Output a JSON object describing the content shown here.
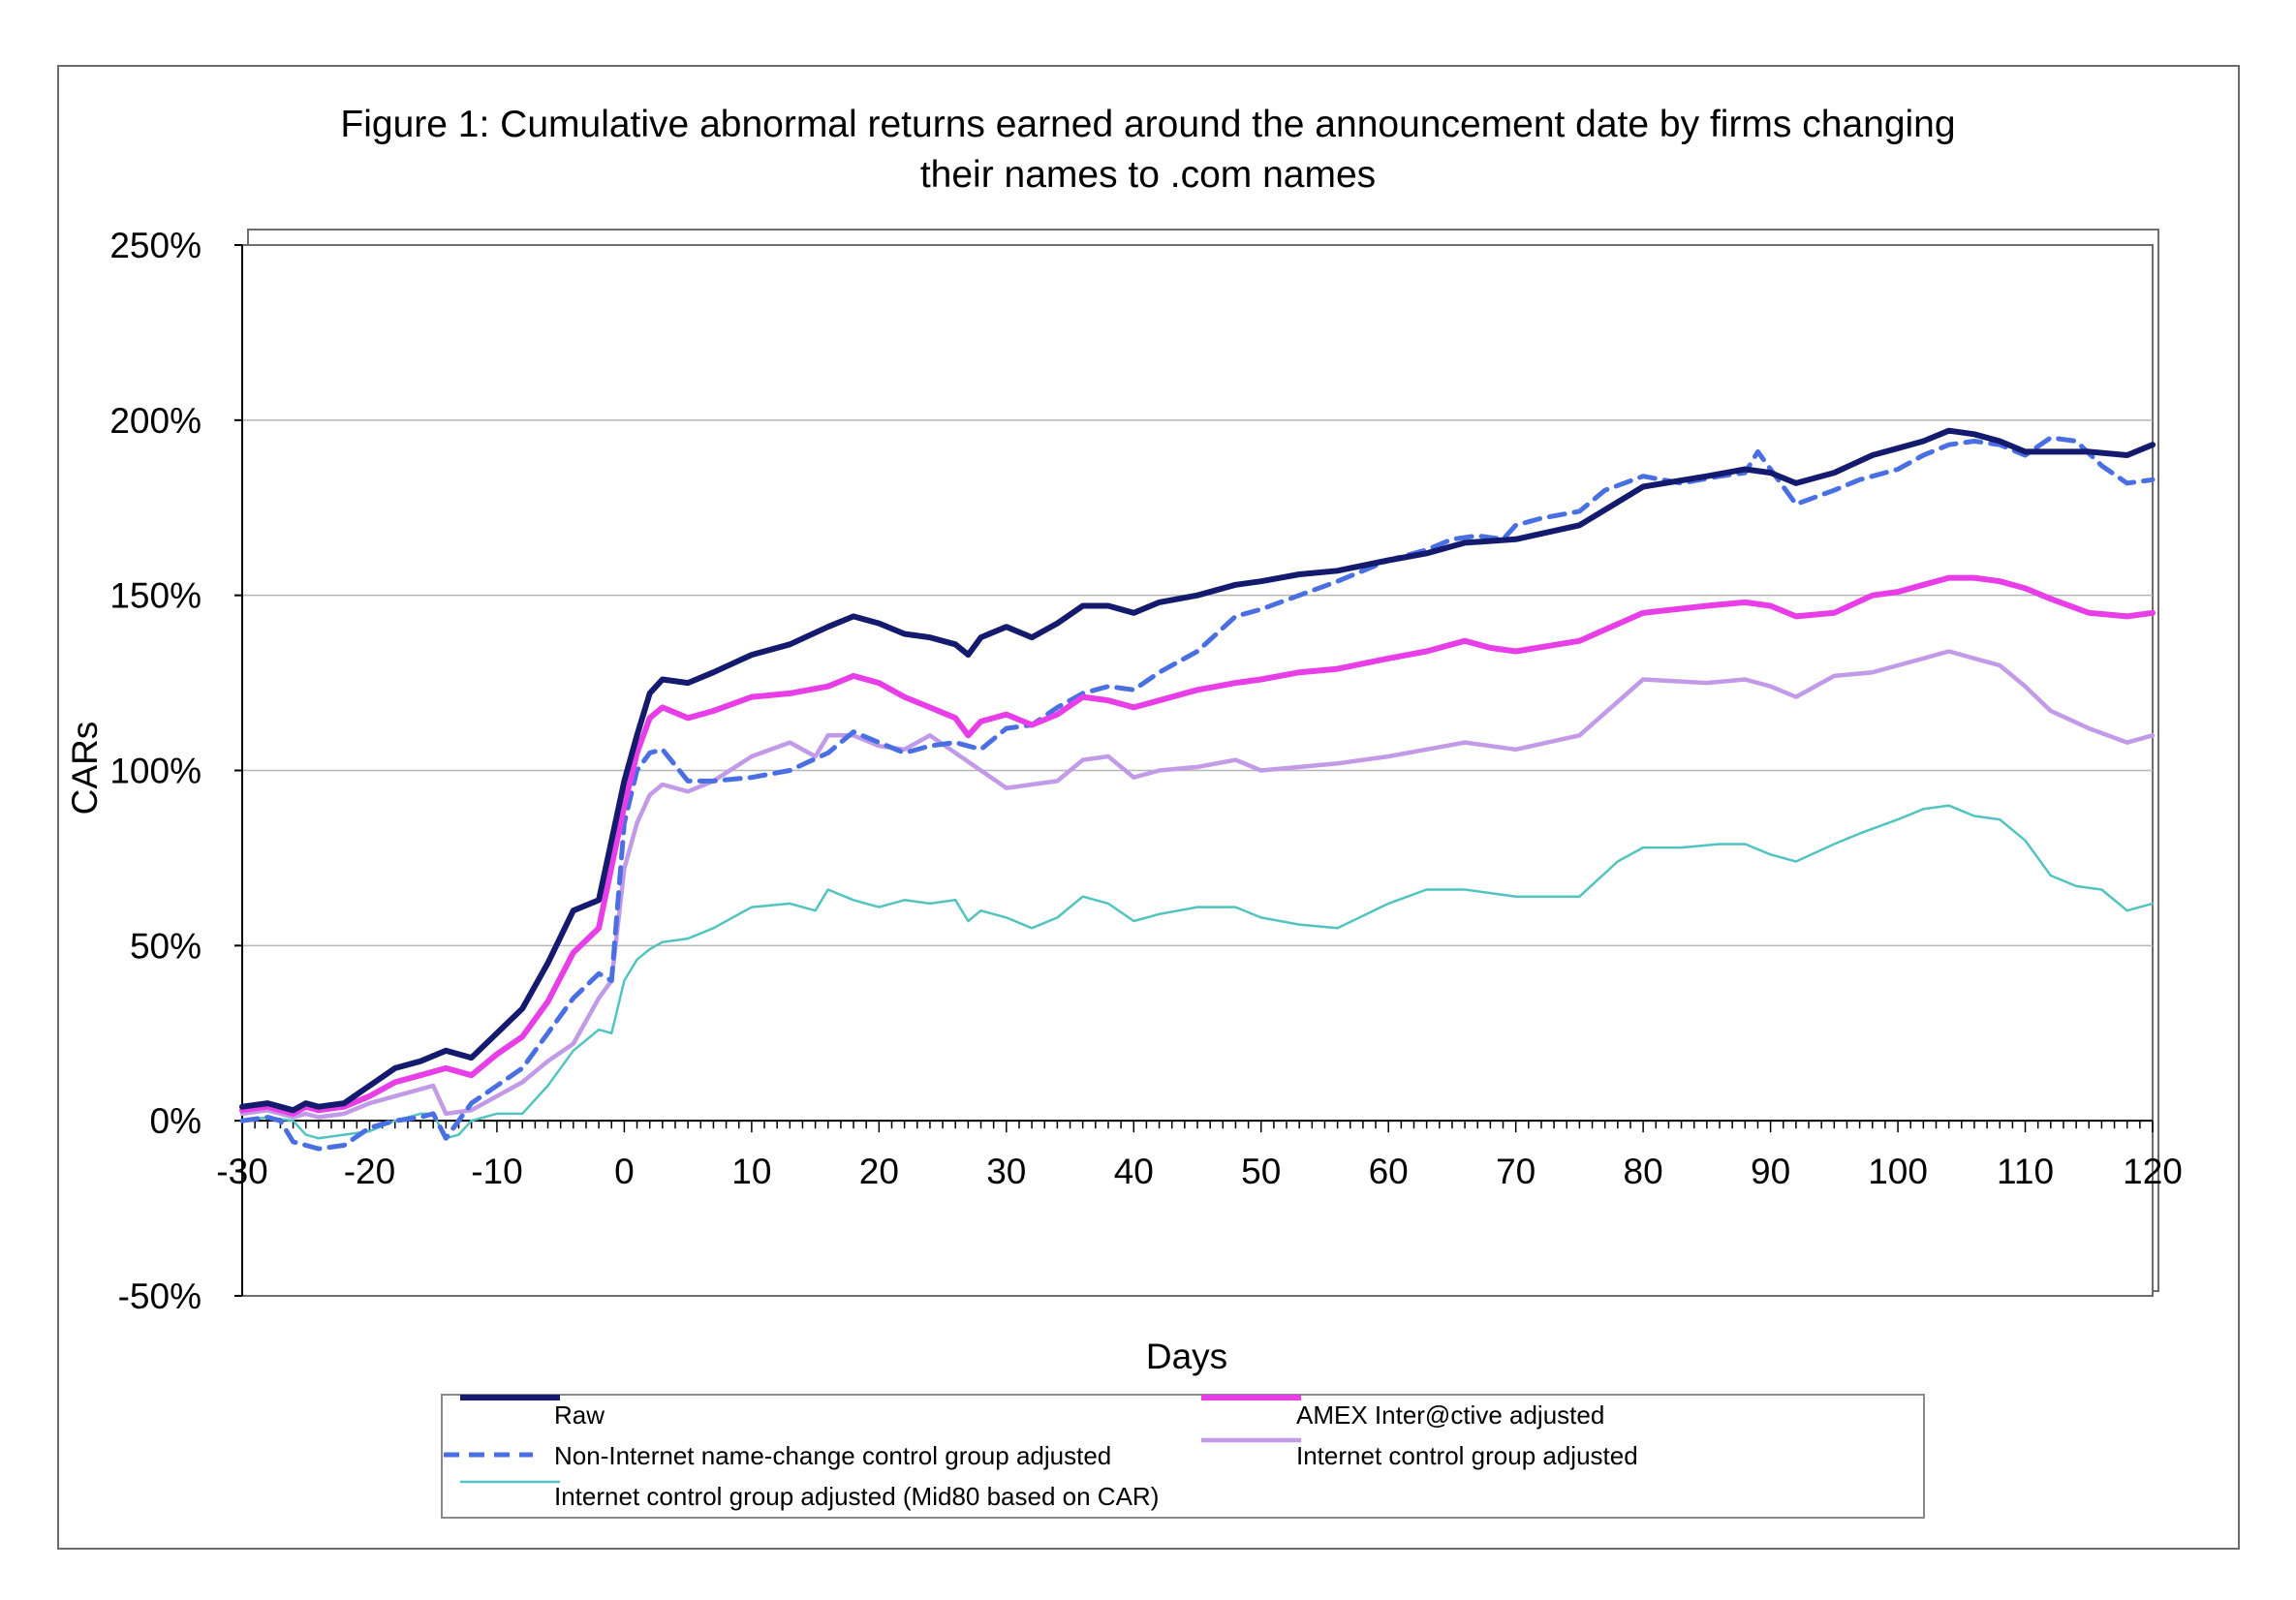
{
  "chart_data": {
    "type": "line",
    "title": [
      "Figure 1: Cumulative abnormal returns earned around the announcement date by firms changing",
      "their names to .com names"
    ],
    "xlabel": "Days",
    "ylabel": "CARs",
    "xlim": [
      -30,
      120
    ],
    "ylim": [
      -0.5,
      2.5
    ],
    "x_ticks": [
      -30,
      -20,
      -10,
      0,
      10,
      20,
      30,
      40,
      50,
      60,
      70,
      80,
      90,
      100,
      110,
      120
    ],
    "x_tick_labels": [
      "-30",
      "-20",
      "-10",
      "0",
      "10",
      "20",
      "30",
      "40",
      "50",
      "60",
      "70",
      "80",
      "90",
      "100",
      "110",
      "120"
    ],
    "y_ticks": [
      -0.5,
      0,
      0.5,
      1.0,
      1.5,
      2.0,
      2.5
    ],
    "y_tick_labels": [
      "-50%",
      "0%",
      "50%",
      "100%",
      "150%",
      "200%",
      "250%"
    ],
    "grid": "horizontal",
    "legend_position": "bottom",
    "series": [
      {
        "name": "Raw",
        "color": "#141a6e",
        "style": "solid-thick",
        "x": [
          -30,
          -28,
          -26,
          -25,
          -24,
          -22,
          -20,
          -18,
          -16,
          -14,
          -12,
          -10,
          -8,
          -6,
          -4,
          -2,
          0,
          1,
          2,
          3,
          5,
          7,
          10,
          13,
          16,
          18,
          20,
          22,
          24,
          26,
          27,
          28,
          30,
          32,
          34,
          36,
          38,
          40,
          42,
          45,
          48,
          50,
          53,
          56,
          60,
          63,
          66,
          70,
          75,
          80,
          85,
          88,
          90,
          92,
          95,
          98,
          100,
          102,
          104,
          106,
          108,
          110,
          112,
          115,
          118,
          120
        ],
        "values": [
          0.04,
          0.05,
          0.03,
          0.05,
          0.04,
          0.05,
          0.1,
          0.15,
          0.17,
          0.2,
          0.18,
          0.25,
          0.32,
          0.45,
          0.6,
          0.63,
          0.97,
          1.1,
          1.22,
          1.26,
          1.25,
          1.28,
          1.33,
          1.36,
          1.41,
          1.44,
          1.42,
          1.39,
          1.38,
          1.36,
          1.33,
          1.38,
          1.41,
          1.38,
          1.42,
          1.47,
          1.47,
          1.45,
          1.48,
          1.5,
          1.53,
          1.54,
          1.56,
          1.57,
          1.6,
          1.62,
          1.65,
          1.66,
          1.7,
          1.81,
          1.84,
          1.86,
          1.85,
          1.82,
          1.85,
          1.9,
          1.92,
          1.94,
          1.97,
          1.96,
          1.94,
          1.91,
          1.91,
          1.91,
          1.9,
          1.93
        ]
      },
      {
        "name": "AMEX Inter@ctive adjusted",
        "color": "#e83ee8",
        "style": "solid-thick",
        "x": [
          -30,
          -28,
          -26,
          -25,
          -24,
          -22,
          -20,
          -18,
          -16,
          -14,
          -12,
          -10,
          -8,
          -6,
          -4,
          -2,
          0,
          1,
          2,
          3,
          5,
          7,
          10,
          13,
          16,
          18,
          20,
          22,
          24,
          26,
          27,
          28,
          30,
          32,
          34,
          36,
          38,
          40,
          42,
          45,
          48,
          50,
          53,
          56,
          60,
          63,
          66,
          68,
          70,
          75,
          80,
          85,
          88,
          90,
          92,
          95,
          98,
          100,
          102,
          104,
          106,
          108,
          110,
          112,
          115,
          118,
          120
        ],
        "values": [
          0.03,
          0.04,
          0.02,
          0.04,
          0.03,
          0.04,
          0.07,
          0.11,
          0.13,
          0.15,
          0.13,
          0.19,
          0.24,
          0.34,
          0.48,
          0.55,
          0.9,
          1.05,
          1.15,
          1.18,
          1.15,
          1.17,
          1.21,
          1.22,
          1.24,
          1.27,
          1.25,
          1.21,
          1.18,
          1.15,
          1.1,
          1.14,
          1.16,
          1.13,
          1.16,
          1.21,
          1.2,
          1.18,
          1.2,
          1.23,
          1.25,
          1.26,
          1.28,
          1.29,
          1.32,
          1.34,
          1.37,
          1.35,
          1.34,
          1.37,
          1.45,
          1.47,
          1.48,
          1.47,
          1.44,
          1.45,
          1.5,
          1.51,
          1.53,
          1.55,
          1.55,
          1.54,
          1.52,
          1.49,
          1.45,
          1.44,
          1.45
        ]
      },
      {
        "name": "Non-Internet name-change control group adjusted",
        "color": "#4a6fe3",
        "style": "dashed",
        "x": [
          -30,
          -28,
          -27,
          -26,
          -25,
          -24,
          -22,
          -20,
          -18,
          -16,
          -15,
          -14,
          -12,
          -10,
          -8,
          -6,
          -4,
          -2,
          -1,
          0,
          1,
          2,
          3,
          5,
          7,
          10,
          13,
          16,
          18,
          20,
          22,
          24,
          26,
          28,
          30,
          32,
          34,
          36,
          38,
          40,
          42,
          45,
          48,
          50,
          53,
          56,
          60,
          63,
          65,
          67,
          69,
          70,
          72,
          75,
          77,
          80,
          83,
          86,
          88,
          89,
          90,
          92,
          95,
          97,
          100,
          102,
          104,
          106,
          108,
          110,
          112,
          114,
          116,
          118,
          120
        ],
        "values": [
          0.0,
          0.01,
          0.0,
          -0.06,
          -0.07,
          -0.08,
          -0.07,
          -0.02,
          0.0,
          0.01,
          0.02,
          -0.05,
          0.05,
          0.1,
          0.15,
          0.25,
          0.35,
          0.42,
          0.4,
          0.85,
          1.0,
          1.05,
          1.06,
          0.97,
          0.97,
          0.98,
          1.0,
          1.05,
          1.11,
          1.08,
          1.05,
          1.07,
          1.08,
          1.06,
          1.12,
          1.13,
          1.18,
          1.22,
          1.24,
          1.23,
          1.28,
          1.34,
          1.44,
          1.46,
          1.5,
          1.54,
          1.6,
          1.63,
          1.66,
          1.67,
          1.66,
          1.7,
          1.72,
          1.74,
          1.8,
          1.84,
          1.82,
          1.84,
          1.85,
          1.91,
          1.86,
          1.76,
          1.8,
          1.83,
          1.86,
          1.9,
          1.93,
          1.94,
          1.93,
          1.9,
          1.95,
          1.94,
          1.87,
          1.82,
          1.83
        ]
      },
      {
        "name": "Internet control group adjusted",
        "color": "#c19ae8",
        "style": "solid",
        "x": [
          -30,
          -28,
          -26,
          -25,
          -24,
          -22,
          -20,
          -18,
          -16,
          -15,
          -14,
          -12,
          -10,
          -8,
          -6,
          -4,
          -2,
          -1,
          0,
          1,
          2,
          3,
          5,
          7,
          10,
          13,
          15,
          16,
          18,
          20,
          22,
          24,
          26,
          28,
          30,
          32,
          34,
          36,
          38,
          40,
          42,
          45,
          48,
          50,
          53,
          56,
          60,
          63,
          66,
          70,
          75,
          80,
          85,
          88,
          90,
          92,
          95,
          98,
          100,
          102,
          104,
          106,
          108,
          110,
          112,
          115,
          118,
          120
        ],
        "values": [
          0.02,
          0.03,
          0.01,
          0.02,
          0.01,
          0.02,
          0.05,
          0.07,
          0.09,
          0.1,
          0.02,
          0.03,
          0.07,
          0.11,
          0.17,
          0.22,
          0.35,
          0.4,
          0.72,
          0.85,
          0.93,
          0.96,
          0.94,
          0.97,
          1.04,
          1.08,
          1.04,
          1.1,
          1.1,
          1.07,
          1.06,
          1.1,
          1.05,
          1.0,
          0.95,
          0.96,
          0.97,
          1.03,
          1.04,
          0.98,
          1.0,
          1.01,
          1.03,
          1.0,
          1.01,
          1.02,
          1.04,
          1.06,
          1.08,
          1.06,
          1.1,
          1.26,
          1.25,
          1.26,
          1.24,
          1.21,
          1.27,
          1.28,
          1.3,
          1.32,
          1.34,
          1.32,
          1.3,
          1.24,
          1.17,
          1.12,
          1.08,
          1.1
        ]
      },
      {
        "name": "Internet control group adjusted (Mid80 based on CAR)",
        "color": "#52c4c0",
        "style": "solid-thin",
        "x": [
          -30,
          -28,
          -26,
          -25,
          -24,
          -22,
          -20,
          -18,
          -16,
          -15,
          -14,
          -13,
          -12,
          -10,
          -8,
          -6,
          -4,
          -2,
          -1,
          0,
          1,
          2,
          3,
          5,
          7,
          10,
          13,
          15,
          16,
          18,
          20,
          22,
          24,
          26,
          27,
          28,
          30,
          32,
          34,
          36,
          38,
          40,
          42,
          45,
          48,
          50,
          53,
          56,
          60,
          63,
          66,
          70,
          75,
          78,
          80,
          83,
          86,
          88,
          90,
          92,
          95,
          97,
          100,
          102,
          104,
          106,
          108,
          110,
          112,
          114,
          116,
          118,
          120
        ],
        "values": [
          0.0,
          0.01,
          0.0,
          -0.04,
          -0.05,
          -0.04,
          -0.03,
          0.0,
          0.02,
          0.02,
          -0.05,
          -0.04,
          0.0,
          0.02,
          0.02,
          0.1,
          0.2,
          0.26,
          0.25,
          0.4,
          0.46,
          0.49,
          0.51,
          0.52,
          0.55,
          0.61,
          0.62,
          0.6,
          0.66,
          0.63,
          0.61,
          0.63,
          0.62,
          0.63,
          0.57,
          0.6,
          0.58,
          0.55,
          0.58,
          0.64,
          0.62,
          0.57,
          0.59,
          0.61,
          0.61,
          0.58,
          0.56,
          0.55,
          0.62,
          0.66,
          0.66,
          0.64,
          0.64,
          0.74,
          0.78,
          0.78,
          0.79,
          0.79,
          0.76,
          0.74,
          0.79,
          0.82,
          0.86,
          0.89,
          0.9,
          0.87,
          0.86,
          0.8,
          0.7,
          0.67,
          0.66,
          0.6,
          0.62
        ]
      }
    ]
  }
}
